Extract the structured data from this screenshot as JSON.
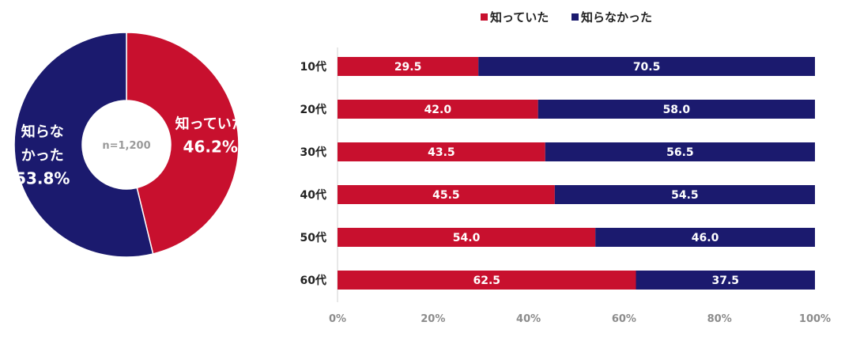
{
  "chart_data": [
    {
      "type": "pie",
      "variant": "donut",
      "center_label": "n=1,200",
      "slices": [
        {
          "label": "知っていた",
          "label_lines": [
            "知っていた"
          ],
          "value": 46.2,
          "value_text": "46.2%",
          "color": "#C8102E"
        },
        {
          "label": "知らなかった",
          "label_lines": [
            "知らな",
            "かった"
          ],
          "value": 53.8,
          "value_text": "53.8%",
          "color": "#1B1A6E"
        }
      ]
    },
    {
      "type": "bar",
      "orientation": "horizontal",
      "stacked": true,
      "legend_position": "top",
      "categories": [
        "10代",
        "20代",
        "30代",
        "40代",
        "50代",
        "60代"
      ],
      "series": [
        {
          "name": "知っていた",
          "color": "#C8102E",
          "values": [
            29.5,
            42.0,
            43.5,
            45.5,
            54.0,
            62.5
          ],
          "labels": [
            "29.5",
            "42.0",
            "43.5",
            "45.5",
            "54.0",
            "62.5"
          ]
        },
        {
          "name": "知らなかった",
          "color": "#1B1A6E",
          "values": [
            70.5,
            58.0,
            56.5,
            54.5,
            46.0,
            37.5
          ],
          "labels": [
            "70.5",
            "58.0",
            "56.5",
            "54.5",
            "46.0",
            "37.5"
          ]
        }
      ],
      "xlim": [
        0,
        100
      ],
      "x_ticks": [
        "0%",
        "20%",
        "40%",
        "60%",
        "80%",
        "100%"
      ],
      "grid": false
    }
  ]
}
